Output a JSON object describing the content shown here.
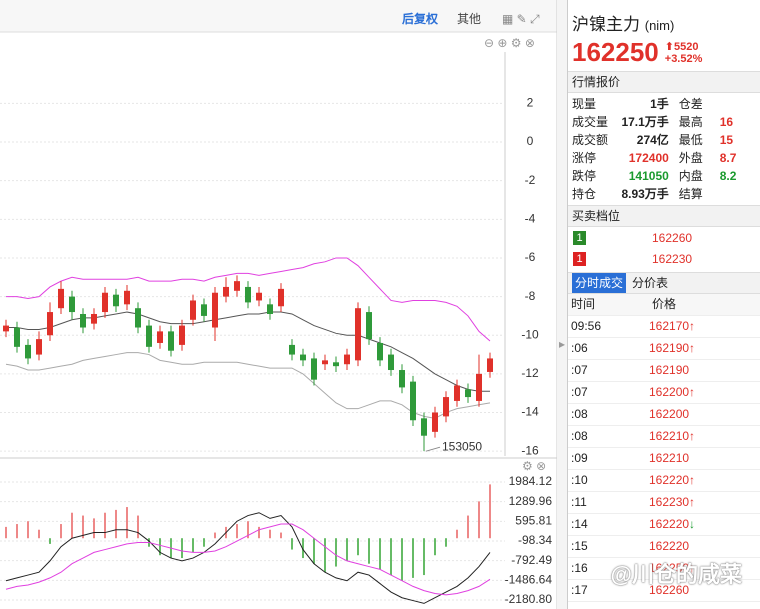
{
  "toolbar": {
    "fq": "后复权",
    "other": "其他"
  },
  "chart_data": [
    {
      "type": "candlestick",
      "ylim": [
        -16.25,
        4.66
      ],
      "yticks": [
        2,
        0,
        -2,
        -4,
        -6,
        -8,
        -10,
        -12,
        -14,
        -16
      ],
      "candles": [
        [
          -9.8,
          -9.5,
          -9.2,
          -10.1
        ],
        [
          -9.6,
          -10.6,
          -9.3,
          -10.9
        ],
        [
          -10.5,
          -11.2,
          -10.2,
          -11.5
        ],
        [
          -11.0,
          -10.2,
          -9.8,
          -11.3
        ],
        [
          -10.0,
          -8.8,
          -8.3,
          -10.3
        ],
        [
          -8.6,
          -7.6,
          -7.2,
          -8.9
        ],
        [
          -8.0,
          -8.8,
          -7.7,
          -9.2
        ],
        [
          -8.9,
          -9.6,
          -8.6,
          -9.9
        ],
        [
          -9.4,
          -8.9,
          -8.6,
          -9.7
        ],
        [
          -8.8,
          -7.8,
          -7.5,
          -9.1
        ],
        [
          -7.9,
          -8.5,
          -7.6,
          -8.8
        ],
        [
          -8.4,
          -7.7,
          -7.4,
          -8.7
        ],
        [
          -8.6,
          -9.6,
          -8.3,
          -9.9
        ],
        [
          -9.5,
          -10.6,
          -9.2,
          -10.9
        ],
        [
          -10.4,
          -9.8,
          -9.5,
          -10.7
        ],
        [
          -9.8,
          -10.8,
          -9.5,
          -11.1
        ],
        [
          -10.5,
          -9.5,
          -9.2,
          -10.8
        ],
        [
          -9.2,
          -8.2,
          -7.9,
          -9.5
        ],
        [
          -8.4,
          -9.0,
          -8.1,
          -9.3
        ],
        [
          -9.6,
          -7.8,
          -7.5,
          -10.3
        ],
        [
          -8.0,
          -7.5,
          -7.0,
          -8.3
        ],
        [
          -7.7,
          -7.2,
          -6.9,
          -8.0
        ],
        [
          -7.5,
          -8.3,
          -7.2,
          -8.6
        ],
        [
          -8.2,
          -7.8,
          -7.5,
          -8.5
        ],
        [
          -8.4,
          -8.9,
          -8.1,
          -9.2
        ],
        [
          -8.5,
          -7.6,
          -7.3,
          -8.8
        ],
        [
          -10.5,
          -11.0,
          -10.2,
          -11.3
        ],
        [
          -11.0,
          -11.3,
          -10.7,
          -11.6
        ],
        [
          -11.2,
          -12.3,
          -10.9,
          -12.6
        ],
        [
          -11.5,
          -11.3,
          -11.0,
          -11.8
        ],
        [
          -11.4,
          -11.6,
          -11.1,
          -11.9
        ],
        [
          -11.5,
          -11.0,
          -10.7,
          -11.8
        ],
        [
          -11.3,
          -8.6,
          -8.3,
          -11.6
        ],
        [
          -8.8,
          -10.2,
          -8.5,
          -10.5
        ],
        [
          -10.4,
          -11.3,
          -10.1,
          -11.6
        ],
        [
          -11.0,
          -11.8,
          -10.7,
          -12.1
        ],
        [
          -11.8,
          -12.7,
          -11.5,
          -13.0
        ],
        [
          -12.4,
          -14.4,
          -12.1,
          -14.7
        ],
        [
          -14.3,
          -15.2,
          -14.0,
          -16.0
        ],
        [
          -15.0,
          -14.0,
          -13.7,
          -15.3
        ],
        [
          -14.2,
          -13.2,
          -12.9,
          -14.5
        ],
        [
          -13.4,
          -12.6,
          -12.3,
          -13.7
        ],
        [
          -12.8,
          -13.2,
          -12.5,
          -13.5
        ],
        [
          -13.4,
          -12.0,
          -11.0,
          -13.7
        ],
        [
          -11.9,
          -11.2,
          -10.9,
          -12.2
        ]
      ],
      "upper": [
        -8.0,
        -8.0,
        -8.1,
        -8.0,
        -7.5,
        -7.2,
        -7.0,
        -7.1,
        -7.1,
        -7.1,
        -7.1,
        -7.1,
        -7.0,
        -7.2,
        -7.2,
        -7.2,
        -7.1,
        -7.1,
        -7.2,
        -7.0,
        -6.9,
        -6.8,
        -6.8,
        -6.9,
        -6.8,
        -6.7,
        -6.6,
        -6.5,
        -6.3,
        -6.2,
        -6.0,
        -6.0,
        -6.4,
        -7.0,
        -7.6,
        -8.2,
        -8.3,
        -8.2,
        -8.2,
        -8.2,
        -8.3,
        -8.5,
        -9.0,
        -9.8,
        -10.3
      ],
      "middle": [
        -9.6,
        -9.6,
        -9.7,
        -9.7,
        -9.6,
        -9.4,
        -9.2,
        -9.1,
        -9.1,
        -9.0,
        -8.9,
        -8.8,
        -8.9,
        -9.1,
        -9.3,
        -9.4,
        -9.4,
        -9.4,
        -9.3,
        -9.2,
        -9.1,
        -9.0,
        -8.9,
        -8.9,
        -8.8,
        -8.8,
        -8.9,
        -9.2,
        -9.5,
        -9.7,
        -9.9,
        -10.0,
        -10.0,
        -10.2,
        -10.4,
        -10.6,
        -10.9,
        -11.2,
        -11.6,
        -12.0,
        -12.3,
        -12.6,
        -12.8,
        -12.9,
        -12.9
      ],
      "lower": [
        -11.5,
        -11.6,
        -11.8,
        -11.8,
        -11.7,
        -11.6,
        -11.5,
        -11.3,
        -11.2,
        -11.1,
        -11.0,
        -10.9,
        -10.9,
        -11.0,
        -11.3,
        -11.4,
        -11.5,
        -11.5,
        -11.4,
        -11.4,
        -11.4,
        -11.4,
        -11.5,
        -11.6,
        -11.7,
        -11.7,
        -11.7,
        -12.0,
        -12.5,
        -13.0,
        -13.5,
        -13.8,
        -13.8,
        -13.6,
        -13.4,
        -13.4,
        -13.6,
        -14.0,
        -14.2,
        -14.3,
        -14.0,
        -13.8,
        -13.7,
        -13.6,
        -13.5
      ],
      "low_label": "153050",
      "low_index": 38
    },
    {
      "type": "macd",
      "ylim": [
        -2498,
        2196
      ],
      "yticks": [
        1984.12,
        1289.96,
        595.81,
        -98.34,
        -792.49,
        -1486.64,
        {
          "value": -2180.8,
          "label": "-2180.80"
        }
      ],
      "hist": [
        400,
        500,
        600,
        300,
        -200,
        500,
        900,
        800,
        700,
        900,
        1000,
        1100,
        800,
        -300,
        -600,
        -700,
        -700,
        -500,
        -300,
        200,
        400,
        500,
        600,
        400,
        300,
        200,
        -400,
        -700,
        -900,
        -1200,
        -1000,
        -800,
        -600,
        -900,
        -1100,
        -1300,
        -1500,
        -1400,
        -1300,
        -600,
        -300,
        300,
        800,
        1300,
        1900
      ],
      "dif": [
        -1500,
        -1400,
        -1300,
        -1200,
        -800,
        -300,
        0,
        100,
        200,
        200,
        300,
        300,
        200,
        -100,
        -500,
        -700,
        -800,
        -700,
        -500,
        -200,
        200,
        600,
        800,
        900,
        700,
        800,
        400,
        -400,
        -900,
        -1200,
        -1400,
        -1500,
        -1200,
        -1300,
        -1600,
        -1900,
        -2100,
        -2200,
        -2300,
        -2100,
        -1900,
        -1700,
        -1400,
        -1000,
        -500
      ],
      "dea": [
        -1800,
        -1700,
        -1650,
        -1550,
        -1400,
        -1200,
        -900,
        -700,
        -500,
        -400,
        -300,
        -200,
        -150,
        -150,
        -250,
        -350,
        -450,
        -500,
        -500,
        -450,
        -300,
        -100,
        100,
        300,
        400,
        500,
        500,
        300,
        0,
        -300,
        -600,
        -800,
        -900,
        -1000,
        -1100,
        -1300,
        -1500,
        -1700,
        -1850,
        -1950,
        -2000,
        -1950,
        -1850,
        -1700,
        -1450
      ]
    }
  ],
  "quote": {
    "name": "沪镍主力",
    "code": "(nim)",
    "price": 162250,
    "change": "5520",
    "change_arrow": "⬆",
    "pct": "+3.52%",
    "section": "行情报价",
    "rows": [
      [
        "现量",
        "1手",
        "仓差",
        ""
      ],
      [
        "成交量",
        "17.1万手",
        "最高",
        "16"
      ],
      [
        "成交额",
        "274亿",
        "最低",
        "15"
      ],
      [
        "涨停",
        "172400",
        "外盘",
        "8.7"
      ],
      [
        "跌停",
        "141050",
        "内盘",
        "8.2"
      ],
      [
        "持仓",
        "8.93万手",
        "结算",
        ""
      ]
    ],
    "book_title": "买卖档位",
    "book": [
      {
        "level": "1",
        "price": 162260
      },
      {
        "level": "1",
        "price": 162230
      }
    ],
    "tabs": [
      "分时成交",
      "分价表"
    ],
    "trade_head": [
      "时间",
      "价格"
    ],
    "trades": [
      [
        "09:56",
        162170,
        "↑"
      ],
      [
        ":06",
        162190,
        "↑"
      ],
      [
        ":07",
        162190,
        ""
      ],
      [
        ":07",
        162200,
        "↑"
      ],
      [
        ":08",
        162200,
        ""
      ],
      [
        ":08",
        162210,
        "↑"
      ],
      [
        ":09",
        162210,
        ""
      ],
      [
        ":10",
        162220,
        "↑"
      ],
      [
        ":11",
        162230,
        "↑"
      ],
      [
        ":14",
        162220,
        "↓"
      ],
      [
        ":15",
        162220,
        ""
      ],
      [
        ":16",
        162250,
        "↑"
      ],
      [
        ":17",
        162260,
        ""
      ]
    ]
  },
  "watermark": "@川仓的咸菜"
}
